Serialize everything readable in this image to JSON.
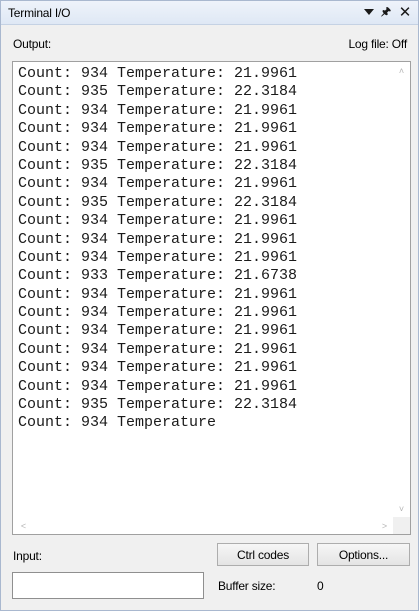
{
  "window": {
    "title": "Terminal I/O",
    "icons": [
      "dropdown-arrow-icon",
      "pin-icon",
      "close-icon"
    ]
  },
  "output": {
    "label": "Output:",
    "logfile": "Log file: Off",
    "lines": [
      "Count: 934 Temperature: 21.9961",
      "Count: 935 Temperature: 22.3184",
      "Count: 934 Temperature: 21.9961",
      "Count: 934 Temperature: 21.9961",
      "Count: 934 Temperature: 21.9961",
      "Count: 935 Temperature: 22.3184",
      "Count: 934 Temperature: 21.9961",
      "Count: 935 Temperature: 22.3184",
      "Count: 934 Temperature: 21.9961",
      "Count: 934 Temperature: 21.9961",
      "Count: 934 Temperature: 21.9961",
      "Count: 933 Temperature: 21.6738",
      "Count: 934 Temperature: 21.9961",
      "Count: 934 Temperature: 21.9961",
      "Count: 934 Temperature: 21.9961",
      "Count: 934 Temperature: 21.9961",
      "Count: 934 Temperature: 21.9961",
      "Count: 934 Temperature: 21.9961",
      "Count: 935 Temperature: 22.3184",
      "Count: 934 Temperature"
    ]
  },
  "input": {
    "label": "Input:",
    "value": "",
    "ctrl_codes_label": "Ctrl codes",
    "options_label": "Options...",
    "buffer_label": "Buffer size:",
    "buffer_value": "0"
  }
}
